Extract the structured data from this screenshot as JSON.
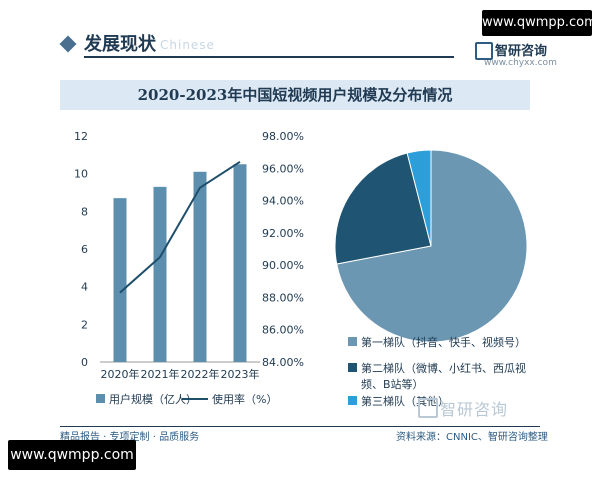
{
  "watermark_top": "www.qwmpp.com",
  "watermark_bottom": "www.qwmpp.com",
  "header": {
    "title": "发展现状",
    "title_en": "Chinese"
  },
  "brand": {
    "name": "智研咨询",
    "url": "www.chyxx.com",
    "bottom_name": "智研咨询"
  },
  "chart_title": "2020-2023年中国短视频用户规模及分布情况",
  "colors": {
    "bar": "#5b8fad",
    "line": "#1f4e6b",
    "pie_1": "#6b97b2",
    "pie_2": "#1f5473",
    "pie_3": "#2e9ed8"
  },
  "chart_data": [
    {
      "type": "bar",
      "categories": [
        "2020年",
        "2021年",
        "2022年",
        "2023年"
      ],
      "series": [
        {
          "name": "用户规模（亿人）",
          "type": "bar",
          "axis": "left",
          "values": [
            8.7,
            9.3,
            10.1,
            10.5
          ]
        },
        {
          "name": "使用率（%）",
          "type": "line",
          "axis": "right",
          "values": [
            88.3,
            90.5,
            94.8,
            96.4
          ]
        }
      ],
      "y_left": {
        "ticks": [
          "0",
          "2",
          "4",
          "6",
          "8",
          "10",
          "12"
        ],
        "range": [
          0,
          12
        ]
      },
      "y_right": {
        "ticks": [
          "84.00%",
          "86.00%",
          "88.00%",
          "90.00%",
          "92.00%",
          "94.00%",
          "96.00%",
          "98.00%"
        ],
        "range": [
          84,
          98
        ]
      },
      "legend": {
        "position": "bottom",
        "items": [
          "用户规模（亿人）",
          "使用率（%）"
        ]
      },
      "grid": false
    },
    {
      "type": "pie",
      "labels": [
        "第一梯队（抖音、快手、视频号）",
        "第二梯队（微博、小红书、西瓜视频、B站等）",
        "第三梯队（其他）"
      ],
      "values": [
        72,
        24,
        4
      ],
      "legend": {
        "position": "bottom",
        "items": [
          "第一梯队（抖音、快手、视频号）",
          "第二梯队（微博、小红书、西瓜视",
          "频、B站等）",
          "第三梯队（其他）"
        ]
      }
    }
  ],
  "footer": {
    "left": "精品报告 · 专项定制 · 品质服务",
    "right": "资料来源：CNNIC、智研咨询整理"
  }
}
